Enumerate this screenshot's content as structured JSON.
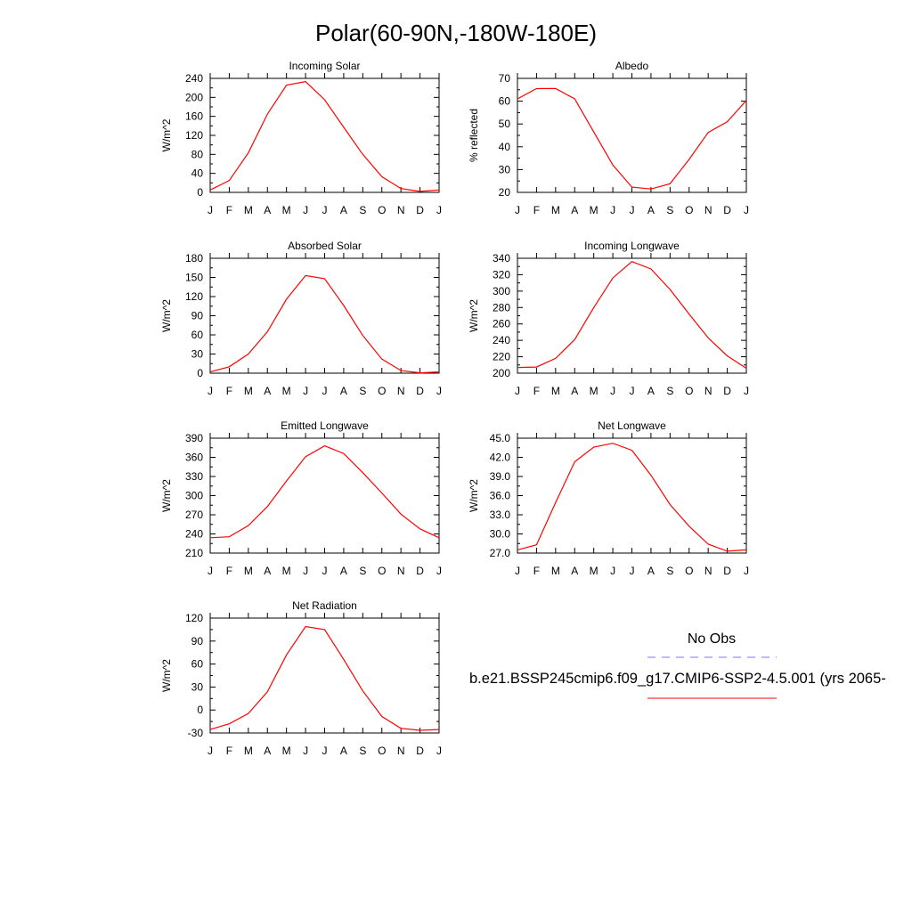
{
  "page": {
    "title": "Polar(60-90N,-180W-180E)"
  },
  "legend": {
    "obs_label": "No Obs",
    "obs_color": "#7777ff",
    "model_label": "b.e21.BSSP245cmip6.f09_g17.CMIP6-SSP2-4.5.001 (yrs 2065-",
    "model_color": "#ff0000"
  },
  "chart_data": [
    {
      "type": "line",
      "title": "Incoming Solar",
      "xlabel": "",
      "ylabel": "W/m^2",
      "categories": [
        "J",
        "F",
        "M",
        "A",
        "M",
        "J",
        "J",
        "A",
        "S",
        "O",
        "N",
        "D",
        "J"
      ],
      "ylim": [
        0,
        240
      ],
      "yticks": [
        "0",
        "40",
        "80",
        "120",
        "160",
        "200",
        "240"
      ],
      "series": [
        {
          "color": "#ff0000",
          "values": [
            5,
            25,
            83,
            165,
            226,
            233,
            195,
            137,
            80,
            33,
            8,
            2,
            5
          ]
        }
      ]
    },
    {
      "type": "line",
      "title": "Albedo",
      "xlabel": "",
      "ylabel": "% reflected",
      "categories": [
        "J",
        "F",
        "M",
        "A",
        "M",
        "J",
        "J",
        "A",
        "S",
        "O",
        "N",
        "D",
        "J"
      ],
      "ylim": [
        20,
        70
      ],
      "yticks": [
        "20",
        "30",
        "40",
        "50",
        "60",
        "70"
      ],
      "series": [
        {
          "color": "#ff0000",
          "values": [
            61,
            65.5,
            65.6,
            61,
            46.5,
            32,
            22.3,
            21.5,
            23.8,
            34.5,
            46.3,
            51,
            60.3
          ]
        }
      ]
    },
    {
      "type": "line",
      "title": "Absorbed Solar",
      "xlabel": "",
      "ylabel": "W/m^2",
      "categories": [
        "J",
        "F",
        "M",
        "A",
        "M",
        "J",
        "J",
        "A",
        "S",
        "O",
        "N",
        "D",
        "J"
      ],
      "ylim": [
        0,
        180
      ],
      "yticks": [
        "0",
        "30",
        "60",
        "90",
        "120",
        "150",
        "180"
      ],
      "series": [
        {
          "color": "#ff0000",
          "values": [
            2,
            10,
            30,
            65,
            116,
            153,
            148,
            106,
            59,
            22,
            4,
            0.5,
            2
          ]
        }
      ]
    },
    {
      "type": "line",
      "title": "Incoming Longwave",
      "xlabel": "",
      "ylabel": "W/m^2",
      "categories": [
        "J",
        "F",
        "M",
        "A",
        "M",
        "J",
        "J",
        "A",
        "S",
        "O",
        "N",
        "D",
        "J"
      ],
      "ylim": [
        200,
        340
      ],
      "yticks": [
        "200",
        "220",
        "240",
        "260",
        "280",
        "300",
        "320",
        "340"
      ],
      "series": [
        {
          "color": "#ff0000",
          "values": [
            207,
            207.5,
            218,
            241,
            280,
            316,
            336,
            327,
            302,
            272,
            243,
            221,
            206
          ]
        }
      ]
    },
    {
      "type": "line",
      "title": "Emitted Longwave",
      "xlabel": "",
      "ylabel": "W/m^2",
      "categories": [
        "J",
        "F",
        "M",
        "A",
        "M",
        "J",
        "J",
        "A",
        "S",
        "O",
        "N",
        "D",
        "J"
      ],
      "ylim": [
        210,
        390
      ],
      "yticks": [
        "210",
        "240",
        "270",
        "300",
        "330",
        "360",
        "390"
      ],
      "series": [
        {
          "color": "#ff0000",
          "values": [
            234,
            235.5,
            253,
            283,
            323,
            361,
            378,
            366,
            336,
            304,
            271,
            248,
            234
          ]
        }
      ]
    },
    {
      "type": "line",
      "title": "Net Longwave",
      "xlabel": "",
      "ylabel": "W/m^2",
      "categories": [
        "J",
        "F",
        "M",
        "A",
        "M",
        "J",
        "J",
        "A",
        "S",
        "O",
        "N",
        "D",
        "J"
      ],
      "ylim": [
        27,
        45
      ],
      "yticks": [
        "27.0",
        "30.0",
        "33.0",
        "36.0",
        "39.0",
        "42.0",
        "45.0"
      ],
      "series": [
        {
          "color": "#ff0000",
          "values": [
            27.5,
            28.3,
            34.9,
            41.3,
            43.6,
            44.2,
            43.1,
            39.2,
            34.6,
            31.2,
            28.4,
            27.3,
            27.5
          ]
        }
      ]
    },
    {
      "type": "line",
      "title": "Net Radiation",
      "xlabel": "",
      "ylabel": "W/m^2",
      "categories": [
        "J",
        "F",
        "M",
        "A",
        "M",
        "J",
        "J",
        "A",
        "S",
        "O",
        "N",
        "D",
        "J"
      ],
      "ylim": [
        -30,
        120
      ],
      "yticks": [
        "-30",
        "0",
        "30",
        "60",
        "90",
        "120"
      ],
      "series": [
        {
          "color": "#ff0000",
          "values": [
            -25.5,
            -18,
            -4.5,
            24,
            72,
            109,
            105,
            66,
            25,
            -8.5,
            -24,
            -26.5,
            -25.5
          ]
        }
      ]
    }
  ]
}
